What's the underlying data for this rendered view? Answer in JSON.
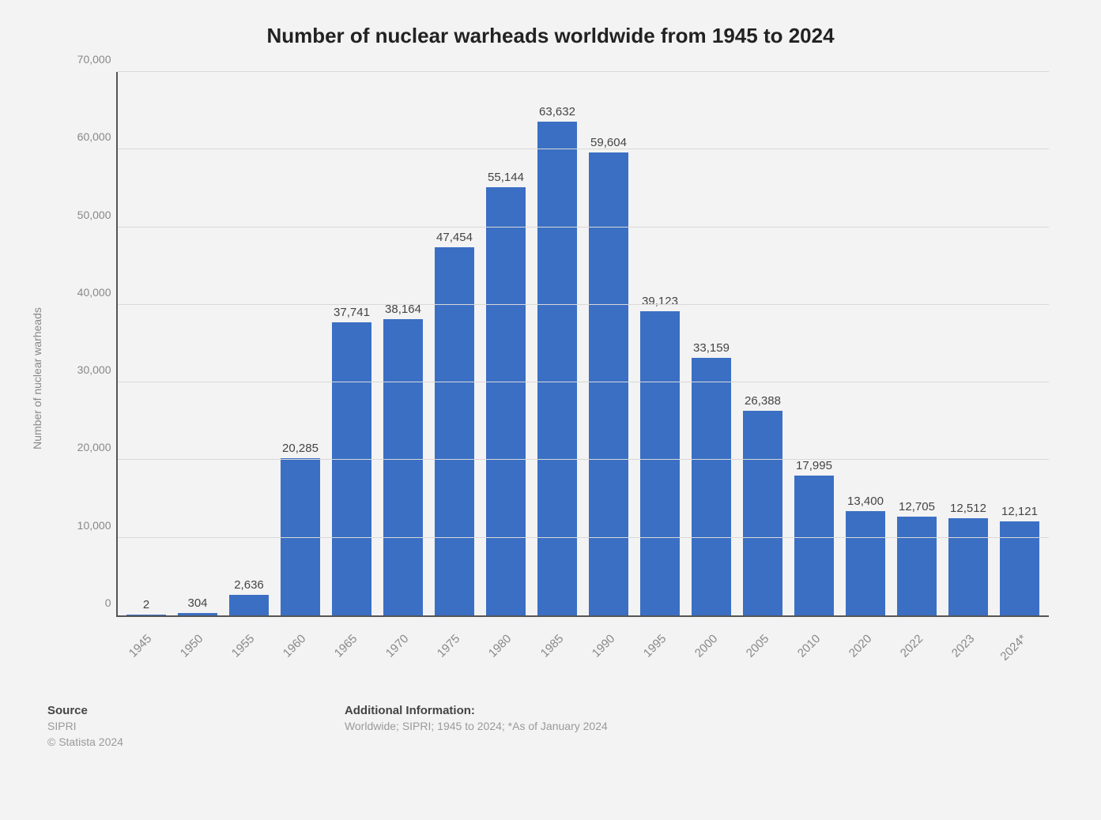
{
  "title": "Number of nuclear warheads worldwide from 1945 to 2024",
  "chart": {
    "type": "bar",
    "yaxis_label": "Number of nuclear warheads",
    "categories": [
      "1945",
      "1950",
      "1955",
      "1960",
      "1965",
      "1970",
      "1975",
      "1980",
      "1985",
      "1990",
      "1995",
      "2000",
      "2005",
      "2010",
      "2020",
      "2022",
      "2023",
      "2024*"
    ],
    "values": [
      2,
      304,
      2636,
      20285,
      37741,
      38164,
      47454,
      55144,
      63632,
      59604,
      39123,
      33159,
      26388,
      17995,
      13400,
      12705,
      12512,
      12121
    ],
    "value_labels": [
      "2",
      "304",
      "2,636",
      "20,285",
      "37,741",
      "38,164",
      "47,454",
      "55,144",
      "63,632",
      "59,604",
      "39,123",
      "33,159",
      "26,388",
      "17,995",
      "13,400",
      "12,705",
      "12,512",
      "12,121"
    ],
    "bar_color": "#3b6fc4",
    "grid_color": "#d8d8d8",
    "axis_color": "#555555",
    "tick_color": "#888888",
    "background_color": "#f3f3f3",
    "ylim": [
      0,
      70000
    ],
    "ytick_step": 10000,
    "ytick_labels": [
      "0",
      "10,000",
      "20,000",
      "30,000",
      "40,000",
      "50,000",
      "60,000",
      "70,000"
    ],
    "bar_width_pct": 76,
    "value_fontsize": 15,
    "tick_fontsize": 15
  },
  "footer": {
    "source_heading": "Source",
    "source_line1": "SIPRI",
    "source_line2": "© Statista 2024",
    "info_heading": "Additional Information:",
    "info_text": "Worldwide; SIPRI; 1945 to 2024; *As of January 2024"
  }
}
